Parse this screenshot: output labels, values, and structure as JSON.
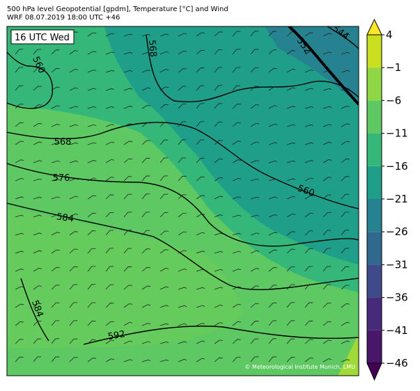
{
  "header": {
    "title": "500 hPa level Geopotential [gpdm], Temperature [°C] and Wind",
    "subtitle": "WRF 08.07.2019 18:00 UTC +46"
  },
  "map": {
    "time_label": "16 UTC Wed",
    "contour_labels": [
      560,
      568,
      552,
      544,
      568,
      576,
      584,
      560,
      584,
      592
    ],
    "credit": "© Meteorological Institute Munich, LMU"
  },
  "colorbar": {
    "lim": [
      -46,
      4
    ],
    "ticks": [
      {
        "value": -46,
        "label": "−46"
      },
      {
        "value": -41,
        "label": "−41"
      },
      {
        "value": -36,
        "label": "−36"
      },
      {
        "value": -31,
        "label": "−31"
      },
      {
        "value": -26,
        "label": "−26"
      },
      {
        "value": -21,
        "label": "−21"
      },
      {
        "value": -16,
        "label": "−16"
      },
      {
        "value": -11,
        "label": "−11"
      },
      {
        "value": -6,
        "label": "−6"
      },
      {
        "value": -1,
        "label": "−1"
      },
      4
    ],
    "colors": [
      "#481769",
      "#472a7a",
      "#3e4a89",
      "#31688e",
      "#26828e",
      "#1f9e89",
      "#35b779",
      "#5ec962",
      "#8fd744",
      "#c8e020"
    ],
    "under_color": "#440154",
    "over_color": "#fde725"
  }
}
